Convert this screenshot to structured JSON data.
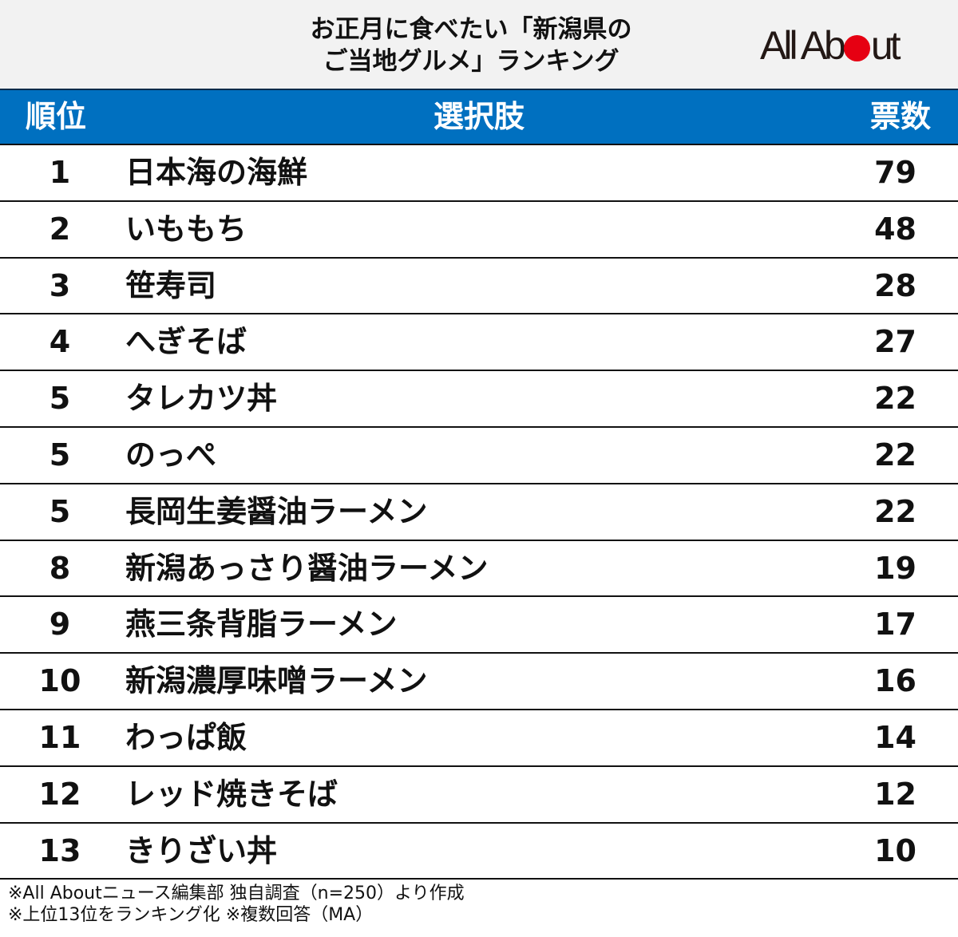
{
  "title": {
    "line1": "お正月に食べたい「新潟県の",
    "line2": "ご当地グルメ」ランキング"
  },
  "logo": {
    "text_before": "All Ab",
    "text_after": "ut",
    "dot_color": "#e60012"
  },
  "colors": {
    "header_bg": "#0070c0",
    "title_bg": "#f2f2f2",
    "header_text": "#ffffff"
  },
  "table": {
    "headers": {
      "rank": "順位",
      "choice": "選択肢",
      "votes": "票数"
    },
    "rows": [
      {
        "rank": "1",
        "name": "日本海の海鮮",
        "votes": "79"
      },
      {
        "rank": "2",
        "name": "いももち",
        "votes": "48"
      },
      {
        "rank": "3",
        "name": "笹寿司",
        "votes": "28"
      },
      {
        "rank": "4",
        "name": "へぎそば",
        "votes": "27"
      },
      {
        "rank": "5",
        "name": "タレカツ丼",
        "votes": "22"
      },
      {
        "rank": "5",
        "name": "のっぺ",
        "votes": "22"
      },
      {
        "rank": "5",
        "name": "長岡生姜醤油ラーメン",
        "votes": "22"
      },
      {
        "rank": "8",
        "name": "新潟あっさり醤油ラーメン",
        "votes": "19"
      },
      {
        "rank": "9",
        "name": "燕三条背脂ラーメン",
        "votes": "17"
      },
      {
        "rank": "10",
        "name": "新潟濃厚味噌ラーメン",
        "votes": "16"
      },
      {
        "rank": "11",
        "name": "わっぱ飯",
        "votes": "14"
      },
      {
        "rank": "12",
        "name": "レッド焼きそば",
        "votes": "12"
      },
      {
        "rank": "13",
        "name": "きりざい丼",
        "votes": "10"
      }
    ]
  },
  "footer": {
    "note1": "※All Aboutニュース編集部 独自調査（n=250）より作成",
    "note2": "※上位13位をランキング化 ※複数回答（MA）"
  },
  "chart_data": {
    "type": "table",
    "title": "お正月に食べたい「新潟県のご当地グルメ」ランキング",
    "columns": [
      "順位",
      "選択肢",
      "票数"
    ],
    "categories": [
      "日本海の海鮮",
      "いももち",
      "笹寿司",
      "へぎそば",
      "タレカツ丼",
      "のっぺ",
      "長岡生姜醤油ラーメン",
      "新潟あっさり醤油ラーメン",
      "燕三条背脂ラーメン",
      "新潟濃厚味噌ラーメン",
      "わっぱ飯",
      "レッド焼きそば",
      "きりざい丼"
    ],
    "ranks": [
      1,
      2,
      3,
      4,
      5,
      5,
      5,
      8,
      9,
      10,
      11,
      12,
      13
    ],
    "values": [
      79,
      48,
      28,
      27,
      22,
      22,
      22,
      19,
      17,
      16,
      14,
      12,
      10
    ],
    "annotations": [
      "※All Aboutニュース編集部 独自調査（n=250）より作成",
      "※上位13位をランキング化 ※複数回答（MA）"
    ]
  }
}
